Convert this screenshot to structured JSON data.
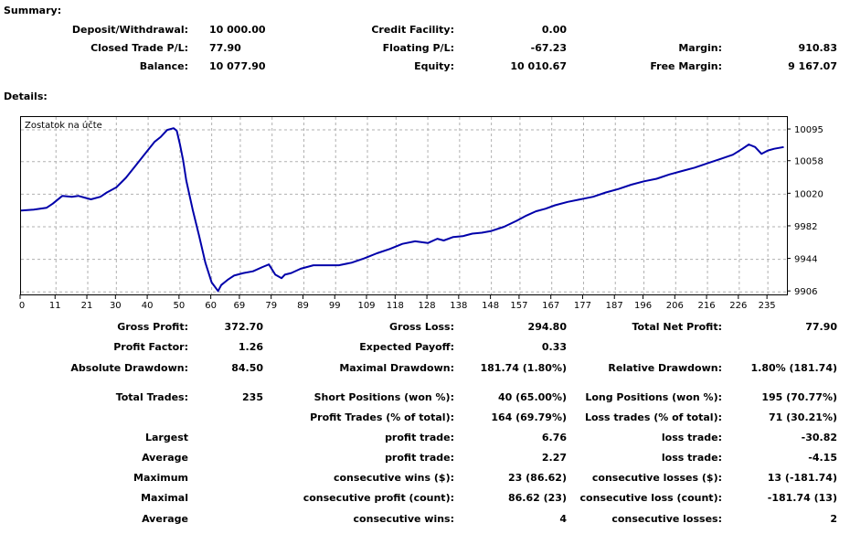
{
  "summary": {
    "title": "Summary:",
    "rows": [
      [
        {
          "label": "Deposit/Withdrawal:",
          "value": "10 000.00"
        },
        {
          "label": "Credit Facility:",
          "value": "0.00"
        },
        {
          "label": "",
          "value": ""
        }
      ],
      [
        {
          "label": "Closed Trade P/L:",
          "value": "77.90"
        },
        {
          "label": "Floating P/L:",
          "value": "-67.23"
        },
        {
          "label": "Margin:",
          "value": "910.83"
        }
      ],
      [
        {
          "label": "Balance:",
          "value": "10 077.90"
        },
        {
          "label": "Equity:",
          "value": "10 010.67"
        },
        {
          "label": "Free Margin:",
          "value": "9 167.07"
        }
      ]
    ]
  },
  "details": {
    "title": "Details:"
  },
  "chart_data": {
    "type": "line",
    "title": "Zostatok na účte",
    "x_ticks": [
      0,
      11,
      21,
      30,
      40,
      50,
      60,
      69,
      79,
      89,
      99,
      109,
      118,
      128,
      138,
      148,
      157,
      167,
      177,
      187,
      196,
      206,
      216,
      226,
      235
    ],
    "y_ticks": [
      10095,
      10058,
      10020,
      9982,
      9944,
      9906
    ],
    "xlim": [
      0,
      241
    ],
    "ylim": [
      9903,
      10110
    ],
    "series": [
      {
        "x": [
          0,
          4,
          8,
          10,
          13,
          16,
          18,
          20,
          22,
          25,
          27,
          28,
          30,
          33,
          36,
          39,
          42,
          44,
          46,
          48,
          49,
          50,
          51,
          52,
          54,
          56,
          58,
          60,
          62,
          63,
          65,
          67,
          70,
          73,
          76,
          78,
          80,
          82,
          83,
          85,
          88,
          92,
          96,
          100,
          104,
          108,
          112,
          116,
          120,
          124,
          128,
          131,
          133,
          136,
          139,
          142,
          145,
          148,
          152,
          156,
          159,
          162,
          165,
          168,
          172,
          176,
          180,
          184,
          188,
          192,
          196,
          200,
          204,
          208,
          212,
          216,
          220,
          224,
          227,
          229,
          231,
          233,
          235,
          237,
          240
        ],
        "y": [
          10001,
          10002,
          10004,
          10009,
          10018,
          10017,
          10018,
          10016,
          10014,
          10017,
          10022,
          10024,
          10028,
          10039,
          10053,
          10067,
          10081,
          10087,
          10095,
          10097,
          10094,
          10078,
          10060,
          10036,
          10002,
          9972,
          9940,
          9917,
          9907,
          9914,
          9920,
          9925,
          9928,
          9930,
          9935,
          9938,
          9926,
          9922,
          9926,
          9928,
          9933,
          9937,
          9937,
          9937,
          9940,
          9945,
          9951,
          9956,
          9962,
          9965,
          9963,
          9968,
          9966,
          9970,
          9971,
          9974,
          9975,
          9977,
          9982,
          9989,
          9995,
          10000,
          10003,
          10007,
          10011,
          10014,
          10017,
          10022,
          10026,
          10031,
          10035,
          10038,
          10043,
          10047,
          10051,
          10056,
          10061,
          10066,
          10073,
          10078,
          10075,
          10067,
          10071,
          10073,
          10075
        ],
        "color": "#0000aa"
      }
    ],
    "grid": true
  },
  "stats": {
    "rows": [
      [
        {
          "label": "Gross Profit:",
          "value": "372.70"
        },
        {
          "label": "Gross Loss:",
          "value": "294.80"
        },
        {
          "label": "Total Net Profit:",
          "value": "77.90"
        }
      ],
      [
        {
          "label": "Profit Factor:",
          "value": "1.26"
        },
        {
          "label": "Expected Payoff:",
          "value": "0.33"
        },
        {
          "label": "",
          "value": ""
        }
      ],
      [
        {
          "label": "Absolute Drawdown:",
          "value": "84.50"
        },
        {
          "label": "Maximal Drawdown:",
          "value": "181.74 (1.80%)"
        },
        {
          "label": "Relative Drawdown:",
          "value": "1.80% (181.74)"
        }
      ],
      [
        {
          "label": "Total Trades:",
          "value": "235"
        },
        {
          "label": "Short Positions (won %):",
          "value": "40 (65.00%)"
        },
        {
          "label": "Long Positions (won %):",
          "value": "195 (70.77%)"
        }
      ],
      [
        {
          "label": "",
          "value": ""
        },
        {
          "label": "Profit Trades (% of total):",
          "value": "164 (69.79%)"
        },
        {
          "label": "Loss trades (% of total):",
          "value": "71 (30.21%)"
        }
      ],
      [
        {
          "label": "Largest",
          "value": ""
        },
        {
          "label": "profit trade:",
          "value": "6.76"
        },
        {
          "label": "loss trade:",
          "value": "-30.82"
        }
      ],
      [
        {
          "label": "Average",
          "value": ""
        },
        {
          "label": "profit trade:",
          "value": "2.27"
        },
        {
          "label": "loss trade:",
          "value": "-4.15"
        }
      ],
      [
        {
          "label": "Maximum",
          "value": ""
        },
        {
          "label": "consecutive wins ($):",
          "value": "23 (86.62)"
        },
        {
          "label": "consecutive losses ($):",
          "value": "13 (-181.74)"
        }
      ],
      [
        {
          "label": "Maximal",
          "value": ""
        },
        {
          "label": "consecutive profit (count):",
          "value": "86.62 (23)"
        },
        {
          "label": "consecutive loss (count):",
          "value": "-181.74 (13)"
        }
      ],
      [
        {
          "label": "Average",
          "value": ""
        },
        {
          "label": "consecutive wins:",
          "value": "4"
        },
        {
          "label": "consecutive losses:",
          "value": "2"
        }
      ]
    ]
  }
}
